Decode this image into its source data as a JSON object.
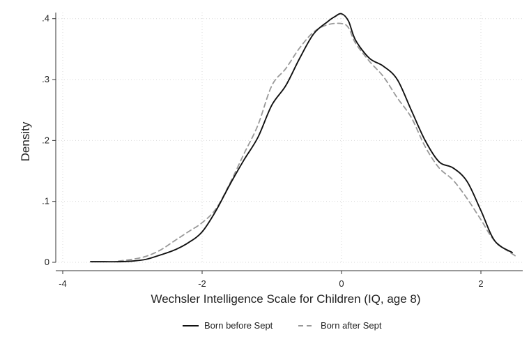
{
  "chart_data": {
    "type": "line",
    "title": "",
    "xlabel": "Wechsler Intelligence Scale for Children (IQ, age 8)",
    "ylabel": "Density",
    "xlim": [
      -4.1,
      2.6
    ],
    "ylim": [
      0,
      0.41
    ],
    "grid": true,
    "legend_position": "bottom",
    "x_ticks": [
      {
        "value": -4,
        "label": "-4"
      },
      {
        "value": -2,
        "label": "-2"
      },
      {
        "value": 0,
        "label": "0"
      },
      {
        "value": 2,
        "label": "2"
      }
    ],
    "y_ticks": [
      {
        "value": 0,
        "label": "0"
      },
      {
        "value": 0.1,
        "label": ".1"
      },
      {
        "value": 0.2,
        "label": ".2"
      },
      {
        "value": 0.3,
        "label": ".3"
      },
      {
        "value": 0.4,
        "label": ".4"
      }
    ],
    "series": [
      {
        "name": "Born before Sept",
        "color": "#111111",
        "dash": "solid",
        "x": [
          -3.6,
          -3.4,
          -3.2,
          -3.0,
          -2.8,
          -2.6,
          -2.4,
          -2.2,
          -2.0,
          -1.8,
          -1.6,
          -1.4,
          -1.2,
          -1.0,
          -0.8,
          -0.6,
          -0.4,
          -0.2,
          -0.1,
          0.0,
          0.1,
          0.2,
          0.4,
          0.6,
          0.8,
          1.0,
          1.2,
          1.4,
          1.6,
          1.8,
          2.0,
          2.2,
          2.45
        ],
        "y": [
          0.001,
          0.001,
          0.001,
          0.002,
          0.005,
          0.012,
          0.02,
          0.032,
          0.05,
          0.085,
          0.128,
          0.168,
          0.205,
          0.258,
          0.29,
          0.335,
          0.375,
          0.395,
          0.403,
          0.408,
          0.396,
          0.365,
          0.335,
          0.322,
          0.3,
          0.25,
          0.2,
          0.165,
          0.155,
          0.133,
          0.085,
          0.035,
          0.016
        ]
      },
      {
        "name": "Born after Sept",
        "color": "#999999",
        "dash": "dashed",
        "x": [
          -3.2,
          -3.0,
          -2.8,
          -2.6,
          -2.4,
          -2.2,
          -2.0,
          -1.8,
          -1.6,
          -1.4,
          -1.2,
          -1.0,
          -0.8,
          -0.6,
          -0.4,
          -0.2,
          0.0,
          0.1,
          0.2,
          0.4,
          0.6,
          0.8,
          1.0,
          1.2,
          1.4,
          1.6,
          1.8,
          2.0,
          2.2,
          2.5
        ],
        "y": [
          0.002,
          0.005,
          0.01,
          0.02,
          0.035,
          0.05,
          0.065,
          0.088,
          0.13,
          0.178,
          0.225,
          0.29,
          0.318,
          0.352,
          0.378,
          0.39,
          0.392,
          0.385,
          0.36,
          0.33,
          0.305,
          0.27,
          0.238,
          0.19,
          0.155,
          0.135,
          0.105,
          0.07,
          0.035,
          0.01
        ]
      }
    ]
  }
}
